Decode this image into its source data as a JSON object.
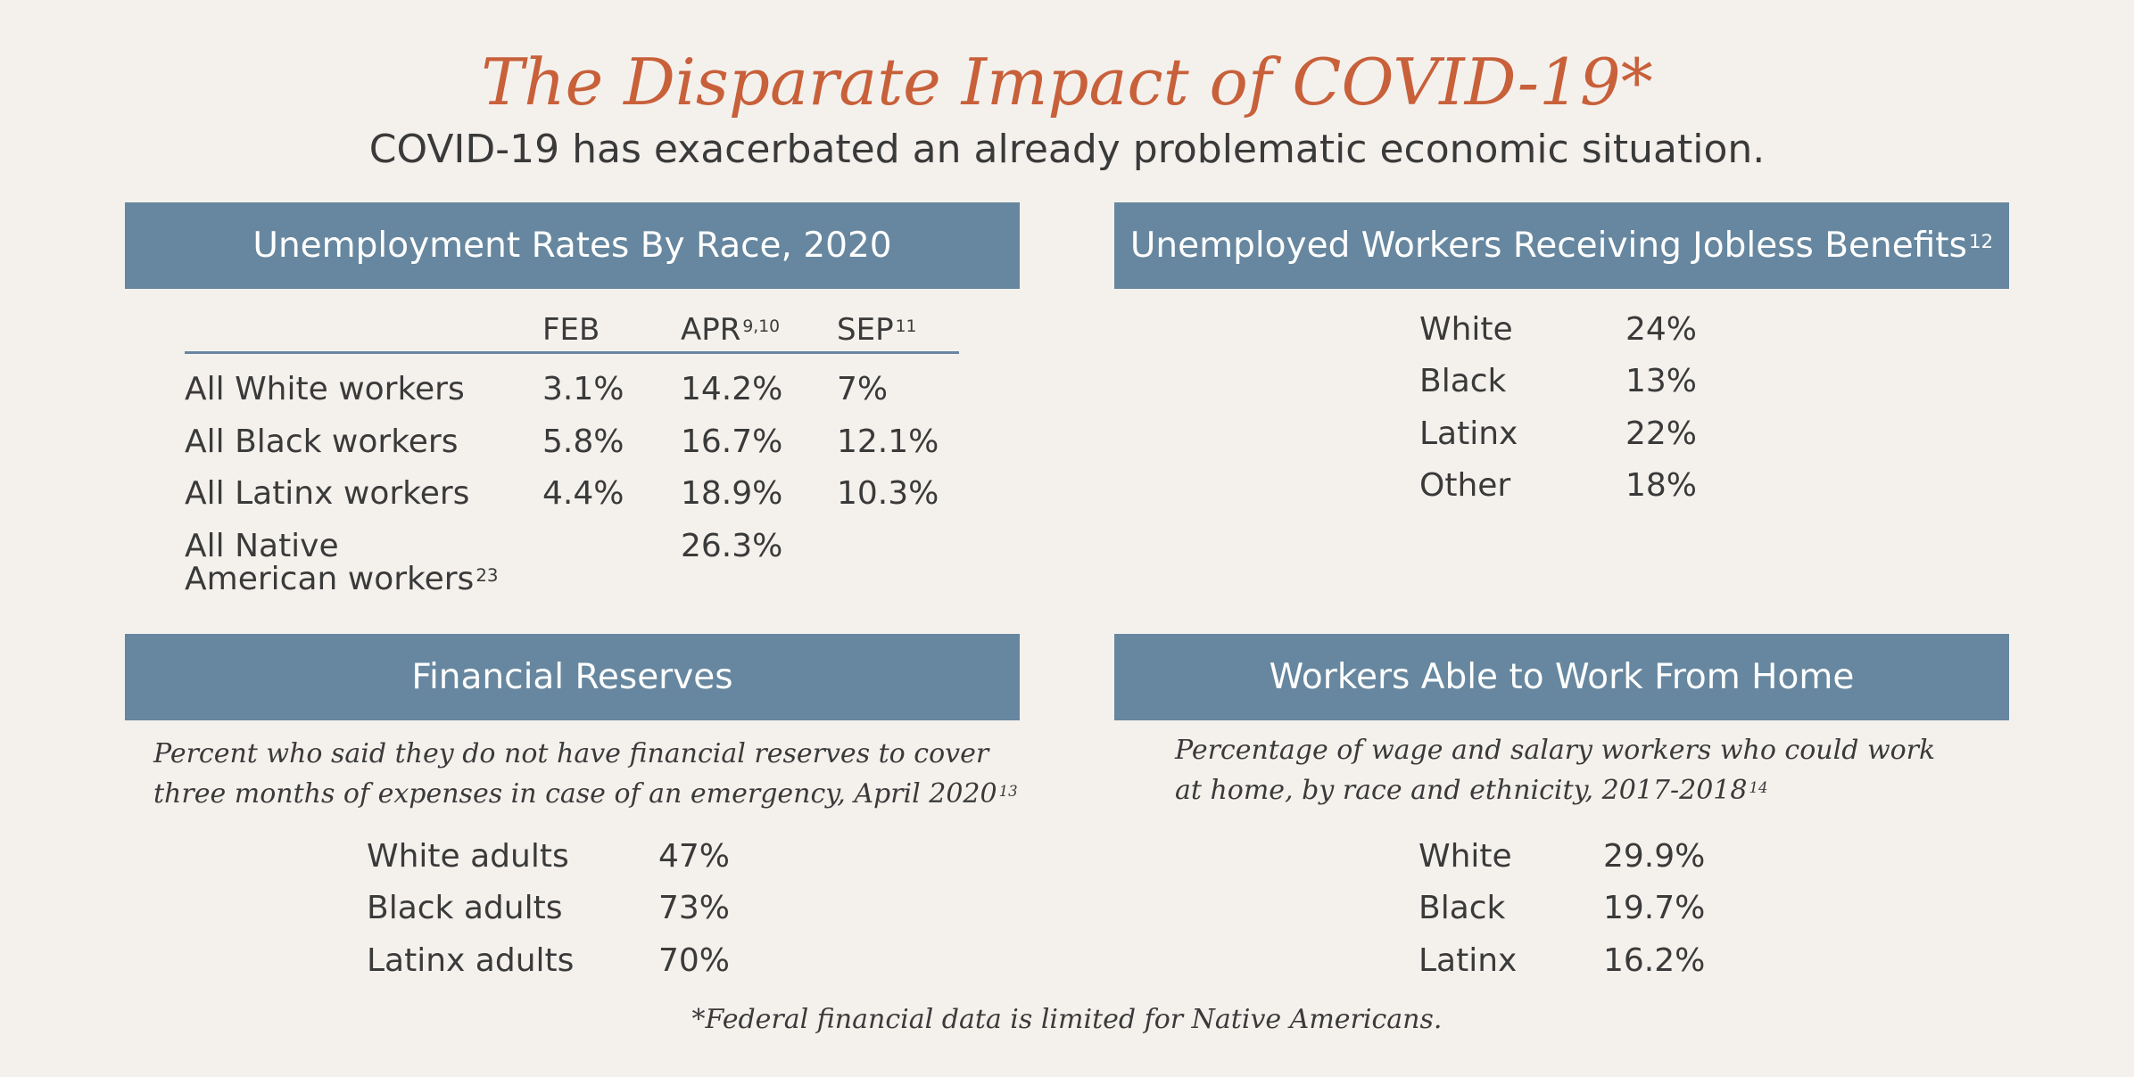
{
  "header": {
    "title": "The Disparate Impact of COVID-19*",
    "subtitle": "COVID-19 has exacerbated an already problematic economic situation."
  },
  "unemployment": {
    "title": "Unemployment Rates By Race, 2020",
    "columns": [
      {
        "label": "FEB",
        "sup": ""
      },
      {
        "label": "APR",
        "sup": "9,10"
      },
      {
        "label": "SEP",
        "sup": "11"
      }
    ],
    "rows": [
      {
        "label": "All White workers",
        "values": [
          "3.1%",
          "14.2%",
          "7%"
        ]
      },
      {
        "label": "All Black workers",
        "values": [
          "5.8%",
          "16.7%",
          "12.1%"
        ]
      },
      {
        "label": "All Latinx workers",
        "values": [
          "4.4%",
          "18.9%",
          "10.3%"
        ]
      },
      {
        "label_line1": "All Native",
        "label_line2": "American workers",
        "label_sup": "23",
        "values": [
          "",
          "26.3%",
          ""
        ]
      }
    ]
  },
  "jobless": {
    "title": "Unemployed Workers Receiving Jobless Benefits",
    "title_sup": "12",
    "rows": [
      {
        "label": "White",
        "value": "24%"
      },
      {
        "label": "Black",
        "value": "13%"
      },
      {
        "label": "Latinx",
        "value": "22%"
      },
      {
        "label": "Other",
        "value": "18%"
      }
    ]
  },
  "reserves": {
    "title": "Financial Reserves",
    "desc_line1": "Percent who said they do not have financial reserves to cover",
    "desc_line2": "three months of expenses in case of an emergency, April 2020",
    "desc_sup": "13",
    "rows": [
      {
        "label": "White adults",
        "value": "47%"
      },
      {
        "label": "Black adults",
        "value": "73%"
      },
      {
        "label": "Latinx adults",
        "value": "70%"
      }
    ]
  },
  "home": {
    "title": "Workers Able to Work From Home",
    "desc_line1": "Percentage of wage and salary workers who could work",
    "desc_line2": "at home, by race and ethnicity, 2017-2018",
    "desc_sup": "14",
    "rows": [
      {
        "label": "White",
        "value": "29.9%"
      },
      {
        "label": "Black",
        "value": "19.7%"
      },
      {
        "label": "Latinx",
        "value": "16.2%"
      }
    ]
  },
  "footnote": "*Federal financial data is limited for Native Americans."
}
